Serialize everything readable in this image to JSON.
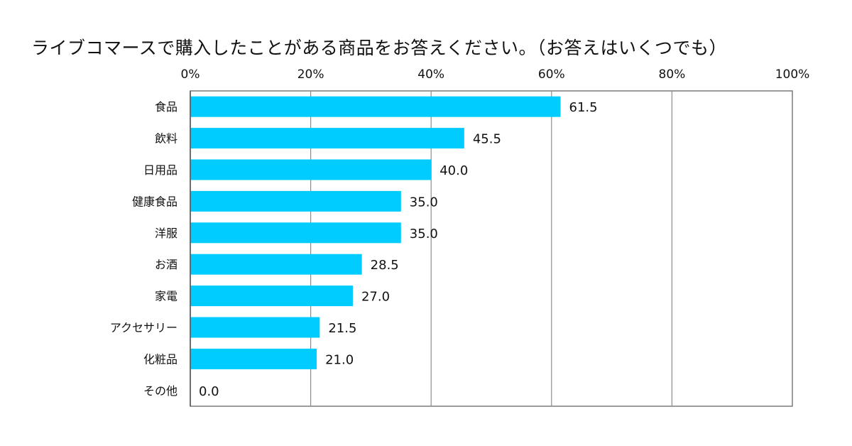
{
  "chart_data": {
    "type": "bar",
    "orientation": "horizontal",
    "title": "ライブコマースで購入したことがある商品をお答えください。（お答えはいくつでも）",
    "categories": [
      "食品",
      "飲料",
      "日用品",
      "健康食品",
      "洋服",
      "お酒",
      "家電",
      "アクセサリー",
      "化粧品",
      "その他"
    ],
    "values": [
      61.5,
      45.5,
      40.0,
      35.0,
      35.0,
      28.5,
      27.0,
      21.5,
      21.0,
      0.0
    ],
    "value_labels": [
      "61.5",
      "45.5",
      "40.0",
      "35.0",
      "35.0",
      "28.5",
      "27.0",
      "21.5",
      "21.0",
      "0.0"
    ],
    "xlim": [
      0,
      100
    ],
    "x_ticks": [
      0,
      20,
      40,
      60,
      80,
      100
    ],
    "x_tick_labels": [
      "0%",
      "20%",
      "40%",
      "60%",
      "80%",
      "100%"
    ],
    "x_axis_position": "top",
    "grid": true,
    "legend": "none",
    "bar_color": "#00CCFF",
    "grid_color": "#8c8c8c",
    "text_color": "#111111"
  }
}
